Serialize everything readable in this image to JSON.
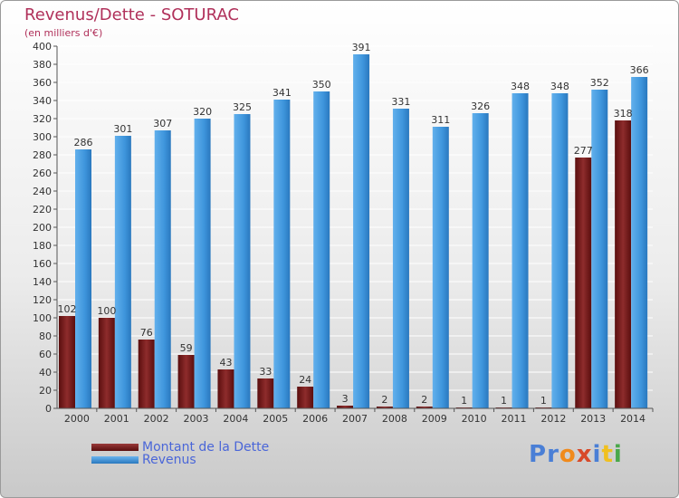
{
  "title": "Revenus/Dette - SOTURAC",
  "subtitle": "(en milliers d'€)",
  "logo": {
    "text": "Proxiti",
    "colors": [
      "#4a7fd6",
      "#4a7fd6",
      "#f08a1c",
      "#d84a2a",
      "#4a7fd6",
      "#f0c020",
      "#4aa84a"
    ]
  },
  "colors": {
    "dette": "#7a1c1c",
    "revenus": "#3a8fd4",
    "axis_text": "#333333",
    "title": "#b0305a"
  },
  "legend": {
    "items": [
      {
        "label": "Montant de la Dette",
        "color": "#7a1c1c"
      },
      {
        "label": "Revenus",
        "color": "#3a8fd4"
      }
    ]
  },
  "chart_data": {
    "type": "bar",
    "title": "Revenus/Dette - SOTURAC",
    "subtitle": "(en milliers d'€)",
    "categories": [
      "2000",
      "2001",
      "2002",
      "2003",
      "2004",
      "2005",
      "2006",
      "2007",
      "2008",
      "2009",
      "2010",
      "2011",
      "2012",
      "2013",
      "2014"
    ],
    "series": [
      {
        "name": "Montant de la Dette",
        "values": [
          102,
          100,
          76,
          59,
          43,
          33,
          24,
          3,
          2,
          2,
          1,
          1,
          1,
          277,
          318
        ]
      },
      {
        "name": "Revenus",
        "values": [
          286,
          301,
          307,
          320,
          325,
          341,
          350,
          391,
          331,
          311,
          326,
          348,
          348,
          352,
          366
        ]
      }
    ],
    "ylim": [
      0,
      400
    ],
    "yticks": [
      0,
      20,
      40,
      60,
      80,
      100,
      120,
      140,
      160,
      180,
      200,
      220,
      240,
      260,
      280,
      300,
      320,
      340,
      360,
      380,
      400
    ],
    "grid": true,
    "legend_position": "bottom-left"
  }
}
